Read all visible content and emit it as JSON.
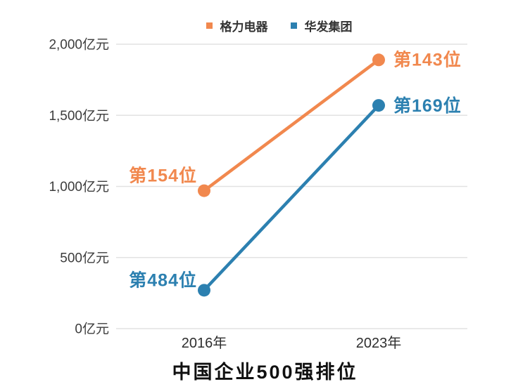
{
  "chart_data": {
    "type": "line",
    "title": "中国企业500强排位",
    "x_categories": [
      "2016年",
      "2023年"
    ],
    "y_unit": "亿元",
    "ylim": [
      0,
      2000
    ],
    "grid": "horizontal",
    "grid_color": "#e2e2e2",
    "legend_position": "top",
    "y_ticks": [
      {
        "label": "2,000亿元",
        "value": 2000
      },
      {
        "label": "1,500亿元",
        "value": 1500
      },
      {
        "label": "1,000亿元",
        "value": 1000
      },
      {
        "label": "500亿元",
        "value": 500
      },
      {
        "label": "0亿元",
        "value": 0
      }
    ],
    "series": [
      {
        "id": "gree",
        "name": "格力电器",
        "color": "#F1884E",
        "values": [
          970,
          1890
        ],
        "point_labels": [
          "第154位",
          "第143位"
        ]
      },
      {
        "id": "huafa",
        "name": "华发集团",
        "color": "#2C80B0",
        "values": [
          270,
          1570
        ],
        "point_labels": [
          "第484位",
          "第169位"
        ]
      }
    ]
  }
}
